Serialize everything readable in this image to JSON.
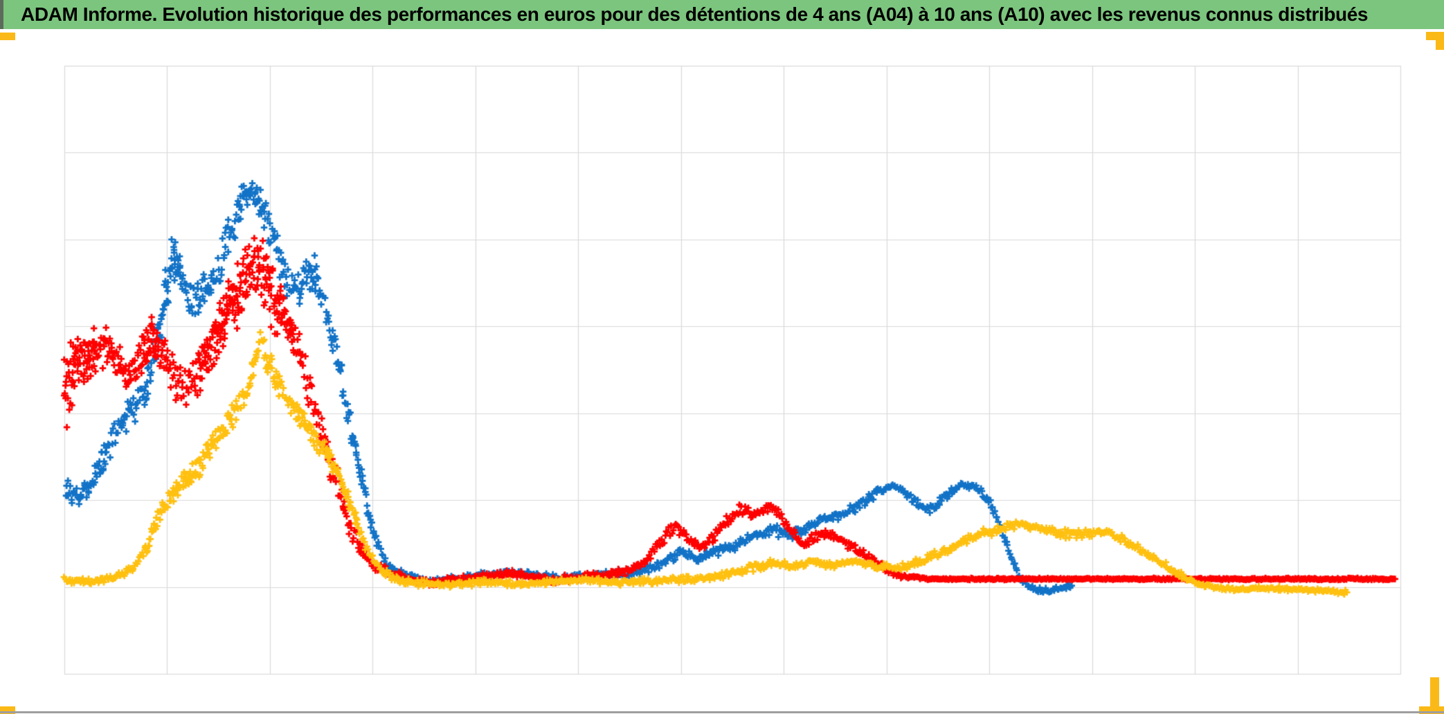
{
  "title_bar": {
    "text": "ADAM Informe. Evolution historique des performances en euros pour des détentions de 4 ans (A04) à 10 ans (A10) avec les revenus connus distribués",
    "background_color": "#7CC57E",
    "left_edge_color": "#5D6B5D",
    "text_color": "#000000"
  },
  "decorations": {
    "corner_marker_color": "#FBB917",
    "bottom_rule_color": "#9E9E9E"
  },
  "chart_data": {
    "type": "scatter",
    "marker": "plus",
    "title": "",
    "legend": "none",
    "axes": {
      "x_tick_labels_visible": false,
      "y_tick_labels_visible": false,
      "x_grid_intervals": 13,
      "y_grid_intervals": 7,
      "grid_on": true,
      "gridline_color": "#D9D9D9",
      "plot_border_color": "#D9D9D9",
      "plot_background": "#FFFFFF"
    },
    "coordinate_note": "source chart shows no axis labels; points are [x, y, spread] in percent of plot area, x 0=left..100=right, y 0=bottom..100=top",
    "series": [
      {
        "name": "series-blue",
        "color": "#1273C7",
        "anchors": [
          [
            0.1,
            30.5,
            2.3
          ],
          [
            1.0,
            28.6,
            2.1
          ],
          [
            1.9,
            30.9,
            2.3
          ],
          [
            2.8,
            34.7,
            2.5
          ],
          [
            3.9,
            39.6,
            2.8
          ],
          [
            5.0,
            43.4,
            3.2
          ],
          [
            5.9,
            46.1,
            3.2
          ],
          [
            6.7,
            51.6,
            4.0
          ],
          [
            7.5,
            61.3,
            5.1
          ],
          [
            8.1,
            69.8,
            4.6
          ],
          [
            8.8,
            65.3,
            4.6
          ],
          [
            9.6,
            61.6,
            4.0
          ],
          [
            10.5,
            62.4,
            4.0
          ],
          [
            11.3,
            64.4,
            4.0
          ],
          [
            12.3,
            72.1,
            4.6
          ],
          [
            13.1,
            77.2,
            3.4
          ],
          [
            13.8,
            79.8,
            2.5
          ],
          [
            14.5,
            78.0,
            3.2
          ],
          [
            15.1,
            74.9,
            3.4
          ],
          [
            15.8,
            71.5,
            3.4
          ],
          [
            16.5,
            65.8,
            4.0
          ],
          [
            17.4,
            63.0,
            4.0
          ],
          [
            18.1,
            65.5,
            3.4
          ],
          [
            18.9,
            65.8,
            3.4
          ],
          [
            19.5,
            60.7,
            3.4
          ],
          [
            20.2,
            53.9,
            3.2
          ],
          [
            20.9,
            46.5,
            2.8
          ],
          [
            21.7,
            37.9,
            2.5
          ],
          [
            22.5,
            29.4,
            2.1
          ],
          [
            23.3,
            22.0,
            1.4
          ],
          [
            24.1,
            18.0,
            0.9
          ],
          [
            25.2,
            16.5,
            0.7
          ],
          [
            27.8,
            15.1,
            0.7
          ],
          [
            30.9,
            16.1,
            0.7
          ],
          [
            34.0,
            16.7,
            0.7
          ],
          [
            37.2,
            15.6,
            0.7
          ],
          [
            40.3,
            16.3,
            0.7
          ],
          [
            42.9,
            16.7,
            0.8
          ],
          [
            44.2,
            17.7,
            0.9
          ],
          [
            45.2,
            19.0,
            1.0
          ],
          [
            46.2,
            19.9,
            1.0
          ],
          [
            47.3,
            18.8,
            0.9
          ],
          [
            48.5,
            19.9,
            1.0
          ],
          [
            50.1,
            21.1,
            1.0
          ],
          [
            51.7,
            22.7,
            1.0
          ],
          [
            53.0,
            23.8,
            1.0
          ],
          [
            54.2,
            22.7,
            0.9
          ],
          [
            55.7,
            24.3,
            1.0
          ],
          [
            57.1,
            25.6,
            0.9
          ],
          [
            58.5,
            26.5,
            0.9
          ],
          [
            59.8,
            28.1,
            0.9
          ],
          [
            61.0,
            30.0,
            0.9
          ],
          [
            62.0,
            30.9,
            0.8
          ],
          [
            62.8,
            30.2,
            0.8
          ],
          [
            63.6,
            28.6,
            0.8
          ],
          [
            64.5,
            26.9,
            0.8
          ],
          [
            65.2,
            27.7,
            0.8
          ],
          [
            66.1,
            29.4,
            0.8
          ],
          [
            66.9,
            30.8,
            0.8
          ],
          [
            67.7,
            31.1,
            0.8
          ],
          [
            68.4,
            30.4,
            0.8
          ],
          [
            69.2,
            28.6,
            0.8
          ],
          [
            69.9,
            25.2,
            0.9
          ],
          [
            70.6,
            20.6,
            0.9
          ],
          [
            71.3,
            16.7,
            0.8
          ],
          [
            72.1,
            14.5,
            0.6
          ],
          [
            72.9,
            13.8,
            0.5
          ],
          [
            73.8,
            13.6,
            0.5
          ],
          [
            74.7,
            14.1,
            0.5
          ],
          [
            75.4,
            14.5,
            0.5
          ]
        ]
      },
      {
        "name": "series-red",
        "color": "#FF0000",
        "anchors": [
          [
            0.0,
            47.0,
            8.0
          ],
          [
            1.1,
            51.6,
            5.1
          ],
          [
            2.4,
            53.3,
            4.6
          ],
          [
            3.4,
            54.1,
            4.0
          ],
          [
            4.8,
            49.1,
            4.0
          ],
          [
            6.1,
            53.9,
            4.6
          ],
          [
            7.0,
            54.8,
            4.6
          ],
          [
            8.0,
            49.3,
            4.0
          ],
          [
            9.1,
            46.8,
            3.4
          ],
          [
            10.2,
            50.5,
            4.6
          ],
          [
            11.5,
            56.2,
            5.1
          ],
          [
            12.8,
            61.8,
            6.3
          ],
          [
            13.8,
            67.0,
            6.3
          ],
          [
            14.6,
            67.5,
            6.8
          ],
          [
            15.4,
            63.0,
            6.3
          ],
          [
            16.3,
            59.0,
            5.1
          ],
          [
            17.2,
            55.0,
            4.6
          ],
          [
            18.1,
            48.7,
            4.0
          ],
          [
            18.9,
            42.5,
            3.4
          ],
          [
            19.6,
            36.8,
            3.2
          ],
          [
            20.5,
            31.1,
            2.8
          ],
          [
            21.3,
            24.8,
            2.3
          ],
          [
            22.2,
            20.3,
            1.7
          ],
          [
            23.2,
            17.7,
            1.1
          ],
          [
            24.7,
            16.3,
            0.8
          ],
          [
            27.3,
            14.9,
            0.7
          ],
          [
            30.4,
            15.7,
            0.7
          ],
          [
            33.5,
            16.5,
            0.7
          ],
          [
            36.6,
            15.4,
            0.7
          ],
          [
            39.7,
            16.1,
            0.7
          ],
          [
            42.3,
            17.0,
            0.8
          ],
          [
            43.6,
            18.6,
            0.9
          ],
          [
            44.7,
            22.0,
            1.1
          ],
          [
            45.7,
            24.3,
            1.1
          ],
          [
            46.7,
            22.2,
            1.1
          ],
          [
            47.8,
            20.6,
            1.0
          ],
          [
            49.1,
            24.0,
            1.1
          ],
          [
            50.5,
            27.1,
            1.0
          ],
          [
            51.7,
            26.3,
            1.0
          ],
          [
            52.8,
            27.7,
            0.9
          ],
          [
            54.0,
            24.7,
            1.0
          ],
          [
            55.2,
            21.3,
            0.9
          ],
          [
            56.6,
            22.9,
            0.9
          ],
          [
            58.1,
            22.0,
            0.9
          ],
          [
            59.7,
            19.9,
            0.8
          ],
          [
            61.1,
            17.7,
            0.7
          ],
          [
            62.5,
            16.1,
            0.4
          ],
          [
            64.6,
            15.6,
            0.2
          ],
          [
            78.1,
            15.6,
            0.2
          ],
          [
            99.6,
            15.6,
            0.2
          ]
        ]
      },
      {
        "name": "series-gold",
        "color": "#FFC010",
        "anchors": [
          [
            0.0,
            15.4,
            0.6
          ],
          [
            1.9,
            15.1,
            0.6
          ],
          [
            3.7,
            15.7,
            0.7
          ],
          [
            5.0,
            17.2,
            0.9
          ],
          [
            6.1,
            20.8,
            1.4
          ],
          [
            7.0,
            25.6,
            1.7
          ],
          [
            7.9,
            28.6,
            1.7
          ],
          [
            8.8,
            31.1,
            2.1
          ],
          [
            9.7,
            33.1,
            2.3
          ],
          [
            10.6,
            36.2,
            2.3
          ],
          [
            11.5,
            39.3,
            2.3
          ],
          [
            12.4,
            41.9,
            2.3
          ],
          [
            13.2,
            44.8,
            2.3
          ],
          [
            13.9,
            48.0,
            2.3
          ],
          [
            14.6,
            55.0,
            2.8
          ],
          [
            15.2,
            51.6,
            2.8
          ],
          [
            15.8,
            48.4,
            2.5
          ],
          [
            16.5,
            45.7,
            2.3
          ],
          [
            17.4,
            43.1,
            2.3
          ],
          [
            18.2,
            40.4,
            2.1
          ],
          [
            19.0,
            37.9,
            2.1
          ],
          [
            19.8,
            35.6,
            1.8
          ],
          [
            20.6,
            32.2,
            1.7
          ],
          [
            21.3,
            28.2,
            1.6
          ],
          [
            22.1,
            23.7,
            1.4
          ],
          [
            22.9,
            19.7,
            1.1
          ],
          [
            23.8,
            16.9,
            0.8
          ],
          [
            25.0,
            15.4,
            0.7
          ],
          [
            27.8,
            14.5,
            0.6
          ],
          [
            31.4,
            15.1,
            0.6
          ],
          [
            35.1,
            14.8,
            0.6
          ],
          [
            38.7,
            15.4,
            0.6
          ],
          [
            41.8,
            15.0,
            0.6
          ],
          [
            44.9,
            15.4,
            0.6
          ],
          [
            47.5,
            15.6,
            0.6
          ],
          [
            49.6,
            16.3,
            0.7
          ],
          [
            51.4,
            17.4,
            0.8
          ],
          [
            53.0,
            18.3,
            0.8
          ],
          [
            54.5,
            17.7,
            0.7
          ],
          [
            56.1,
            18.6,
            0.8
          ],
          [
            57.6,
            17.9,
            0.7
          ],
          [
            59.2,
            18.6,
            0.7
          ],
          [
            60.7,
            17.7,
            0.7
          ],
          [
            62.3,
            17.4,
            0.7
          ],
          [
            63.8,
            18.3,
            0.8
          ],
          [
            65.4,
            19.7,
            0.9
          ],
          [
            66.9,
            21.3,
            0.9
          ],
          [
            68.5,
            22.9,
            0.9
          ],
          [
            70.1,
            23.8,
            0.9
          ],
          [
            71.6,
            24.6,
            0.8
          ],
          [
            73.2,
            24.0,
            0.8
          ],
          [
            74.7,
            23.1,
            0.8
          ],
          [
            76.1,
            22.9,
            0.8
          ],
          [
            77.6,
            23.5,
            0.8
          ],
          [
            79.0,
            22.4,
            0.8
          ],
          [
            80.4,
            20.6,
            0.8
          ],
          [
            81.8,
            18.6,
            0.7
          ],
          [
            83.3,
            16.5,
            0.6
          ],
          [
            84.7,
            14.9,
            0.5
          ],
          [
            86.2,
            14.1,
            0.4
          ],
          [
            87.9,
            13.9,
            0.4
          ],
          [
            90.0,
            14.1,
            0.4
          ],
          [
            92.1,
            13.9,
            0.4
          ],
          [
            94.2,
            13.7,
            0.4
          ],
          [
            96.0,
            13.4,
            0.4
          ]
        ]
      }
    ]
  }
}
